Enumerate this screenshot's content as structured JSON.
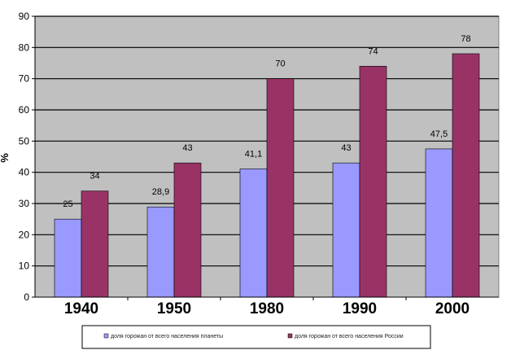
{
  "chart_data": {
    "type": "bar",
    "ylabel": "%",
    "ylim": [
      0,
      90
    ],
    "ytick_step": 10,
    "grid": true,
    "legend_position": "bottom",
    "categories": [
      "1940",
      "1950",
      "1980",
      "1990",
      "2000"
    ],
    "series": [
      {
        "name": "доля горожан от всего населения планеты",
        "values": [
          25,
          28.9,
          41.1,
          43,
          47.5
        ],
        "labels": [
          "25",
          "28,9",
          "41,1",
          "43",
          "47,5"
        ],
        "color": "#9999FF"
      },
      {
        "name": "доля горожан от всего населения России",
        "values": [
          34,
          43,
          70,
          74,
          78
        ],
        "labels": [
          "34",
          "43",
          "70",
          "74",
          "78"
        ],
        "color": "#993366"
      }
    ],
    "plot_background": "#C0C0C0"
  }
}
